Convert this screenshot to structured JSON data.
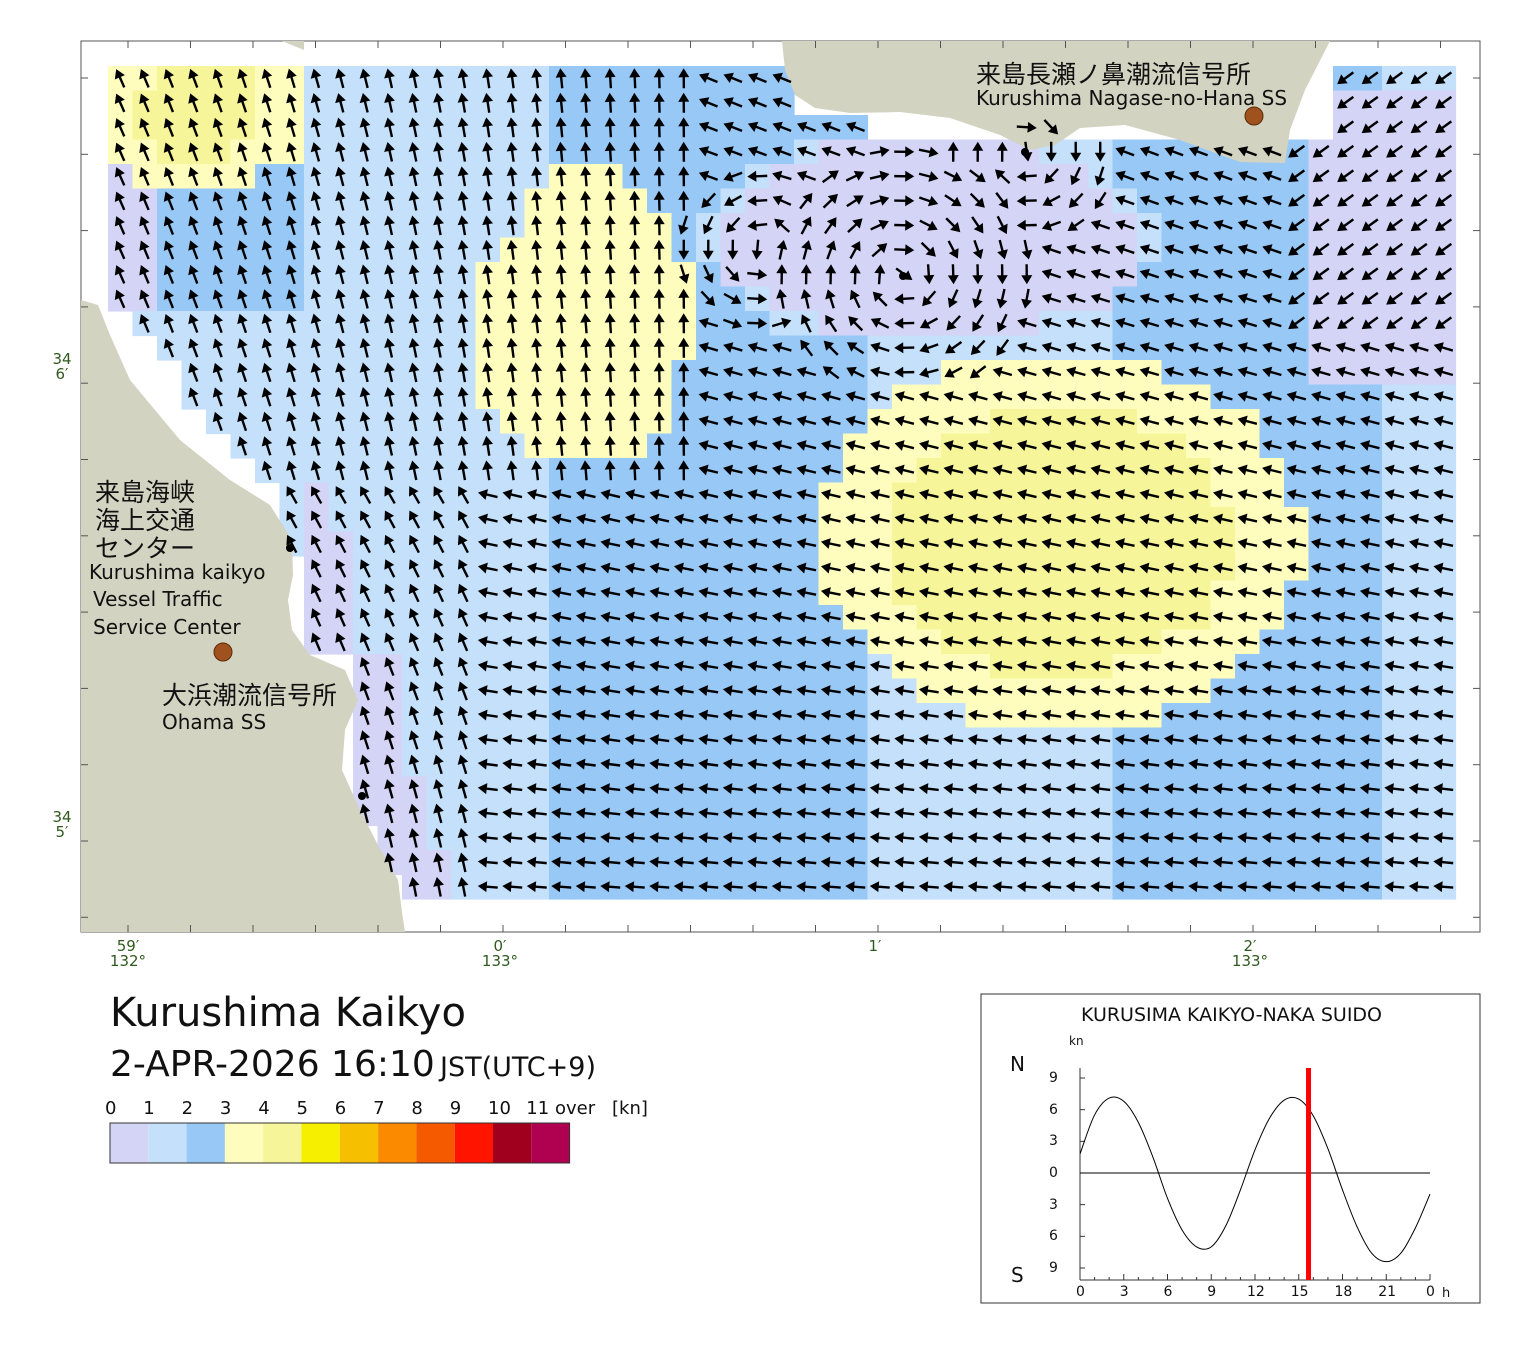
{
  "title": "Kurushima Kaikyo",
  "datetime": "2-APR-2026 16:10",
  "timezone": "JST(UTC+9)",
  "colors": {
    "land": "#d3d3c2",
    "speed_0_1": "#d4d4f6",
    "speed_1_2": "#c4e0fb",
    "speed_2_3": "#98c8f6",
    "speed_3_4": "#fefdbe",
    "speed_4_5": "#f6f59a",
    "station_marker": "#a0521e",
    "time_marker": "#ff0000"
  },
  "legend": {
    "ticks": [
      "0",
      "1",
      "2",
      "3",
      "4",
      "5",
      "6",
      "7",
      "8",
      "9",
      "10",
      "11"
    ],
    "over_label": "over",
    "unit_label": "[kn]",
    "bins": [
      "#d4d4f6",
      "#c4e0fb",
      "#98c8f6",
      "#fefdbe",
      "#f6f59a",
      "#f6ef00",
      "#f6bf00",
      "#fb8a00",
      "#f55a00",
      "#ff1400",
      "#a0001e",
      "#b00050"
    ]
  },
  "stations": {
    "nagase_jp": "来島長瀬ノ鼻潮流信号所",
    "nagase_en": "Kurushima Nagase-no-Hana SS",
    "vts_jp_line1": "来島海峡",
    "vts_jp_line2": "海上交通",
    "vts_jp_line3": "センター",
    "vts_en_line1": "Kurushima kaikyo",
    "vts_en_line2": "Vessel Traffic",
    "vts_en_line3": "Service Center",
    "ohama_jp": "大浜潮流信号所",
    "ohama_en": "Ohama SS"
  },
  "axes": {
    "lat_labels": [
      {
        "deg": "34",
        "min": "6′"
      },
      {
        "deg": "34",
        "min": "5′"
      }
    ],
    "lon_labels": [
      {
        "min": "59′",
        "deg": "132°"
      },
      {
        "min": "0′",
        "deg": "133°"
      },
      {
        "min": "1′",
        "deg": ""
      },
      {
        "min": "2′",
        "deg": "133°"
      }
    ]
  },
  "tide_graph": {
    "title": "KURUSIMA KAIKYO-NAKA SUIDO",
    "unit": "kn",
    "north_label": "N",
    "south_label": "S",
    "y_ticks": [
      "9",
      "6",
      "3",
      "0",
      "3",
      "6",
      "9"
    ],
    "x_ticks": [
      "0",
      "3",
      "6",
      "9",
      "12",
      "15",
      "18",
      "21",
      "0"
    ],
    "x_unit": "h",
    "current_hour": 15.67,
    "curve": {
      "x": [
        0,
        1,
        2,
        3,
        4,
        5,
        6,
        7,
        8,
        9,
        10,
        11,
        12,
        13,
        14,
        15,
        16,
        17,
        18,
        19,
        20,
        21,
        22,
        23,
        24
      ],
      "y": [
        1.8,
        5.5,
        7.1,
        6.8,
        4.8,
        1.5,
        -2.4,
        -5.4,
        -7.0,
        -7.0,
        -5.0,
        -1.6,
        2.2,
        5.2,
        6.9,
        7.0,
        5.4,
        2.3,
        -1.6,
        -5.1,
        -7.6,
        -8.4,
        -7.6,
        -5.2,
        -2.0
      ]
    }
  }
}
